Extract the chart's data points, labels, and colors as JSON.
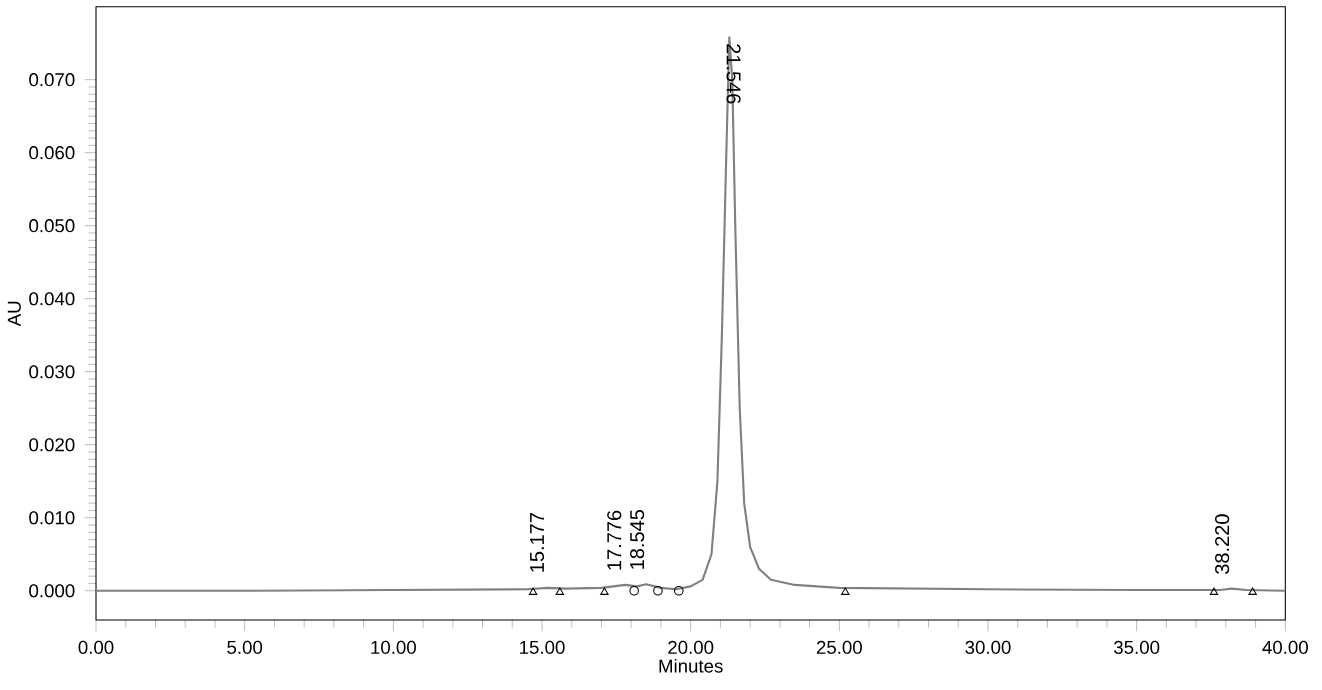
{
  "chart_data": {
    "type": "line",
    "xlabel": "Minutes",
    "ylabel": "AU",
    "xlim": [
      0,
      40
    ],
    "ylim": [
      -0.004,
      0.08
    ],
    "xticks": [
      {
        "value": 0,
        "label": "0.00"
      },
      {
        "value": 5,
        "label": "5.00"
      },
      {
        "value": 10,
        "label": "10.00"
      },
      {
        "value": 15,
        "label": "15.00"
      },
      {
        "value": 20,
        "label": "20.00"
      },
      {
        "value": 25,
        "label": "25.00"
      },
      {
        "value": 30,
        "label": "30.00"
      },
      {
        "value": 35,
        "label": "35.00"
      },
      {
        "value": 40,
        "label": "40.00"
      }
    ],
    "yticks": [
      {
        "value": 0,
        "label": "0.000"
      },
      {
        "value": 0.01,
        "label": "0.010"
      },
      {
        "value": 0.02,
        "label": "0.020"
      },
      {
        "value": 0.03,
        "label": "0.030"
      },
      {
        "value": 0.04,
        "label": "0.040"
      },
      {
        "value": 0.05,
        "label": "0.050"
      },
      {
        "value": 0.06,
        "label": "0.060"
      },
      {
        "value": 0.07,
        "label": "0.070"
      }
    ],
    "grid": false,
    "legend": false,
    "series": [
      {
        "color": "#808080",
        "marker": "none",
        "line_style": "solid",
        "x": [
          0,
          5,
          10,
          14.5,
          15.2,
          15.8,
          17,
          17.8,
          18.2,
          18.5,
          19,
          19.5,
          20,
          20.4,
          20.7,
          20.9,
          21.05,
          21.2,
          21.3,
          21.4,
          21.5,
          21.65,
          21.8,
          22,
          22.3,
          22.7,
          23.5,
          25,
          30,
          35,
          37.8,
          38.2,
          38.7,
          40
        ],
        "values": [
          0.0,
          0.0,
          0.0001,
          0.0002,
          0.0004,
          0.0003,
          0.0004,
          0.0008,
          0.0006,
          0.0009,
          0.0004,
          0.0002,
          0.0006,
          0.0015,
          0.005,
          0.015,
          0.035,
          0.06,
          0.0758,
          0.07,
          0.05,
          0.025,
          0.012,
          0.006,
          0.003,
          0.0015,
          0.0008,
          0.0004,
          0.0002,
          0.0001,
          0.0001,
          0.0003,
          0.0001,
          0.0
        ]
      },
      {
        "type": "scatter",
        "color": "#000000",
        "marker": "triangle",
        "x": [
          14.7,
          15.6,
          17.1,
          25.2,
          37.6,
          38.9
        ],
        "values": [
          -0.0002,
          -0.0002,
          -0.0002,
          -0.0002,
          -0.0002,
          -0.0002
        ]
      },
      {
        "type": "scatter",
        "color": "#000000",
        "marker": "circle",
        "x": [
          18.1,
          18.9,
          19.6
        ],
        "values": [
          0.0,
          0.0,
          0.0
        ]
      }
    ],
    "annotations": [
      {
        "text": "15.177",
        "x": 15.177,
        "y": 0.0005
      },
      {
        "text": "17.776",
        "x": 17.776,
        "y": 0.0008
      },
      {
        "text": "18.545",
        "x": 18.545,
        "y": 0.0009
      },
      {
        "text": "21.546",
        "x": 21.546,
        "y": 0.0758
      },
      {
        "text": "38.220",
        "x": 38.22,
        "y": 0.0003
      }
    ]
  }
}
